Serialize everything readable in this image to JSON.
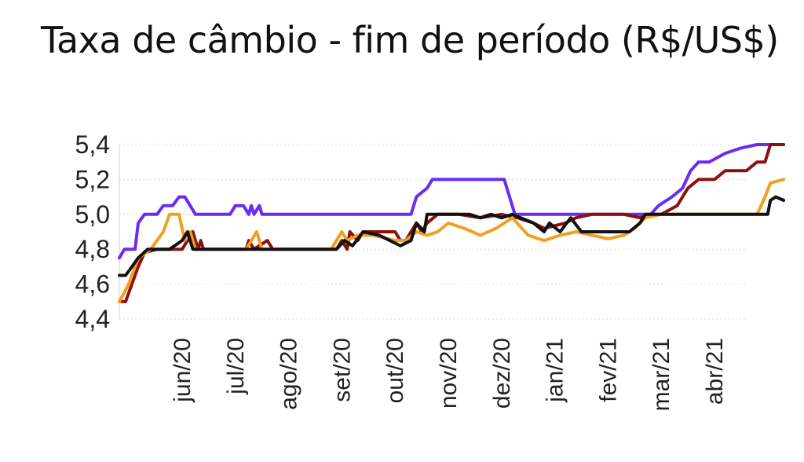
{
  "chart_data": {
    "type": "line",
    "title": "Taxa de câmbio - fim de período (R$/US$)",
    "xlabel": "",
    "ylabel": "",
    "ylim": [
      4.4,
      5.4
    ],
    "yticks": [
      "5,4",
      "5,2",
      "5,0",
      "4,8",
      "4,6",
      "4,4"
    ],
    "grid": true,
    "legend": "none",
    "xticks": [
      "jun/20",
      "jul/20",
      "ago/20",
      "set/20",
      "out/20",
      "nov/20",
      "dez/20",
      "jan/21",
      "fev/21",
      "mar/21",
      "abr/21"
    ],
    "series": [
      {
        "color": "#6a2cf0",
        "points": [
          [
            0,
            4.75
          ],
          [
            0.08,
            4.8
          ],
          [
            0.25,
            4.8
          ],
          [
            0.3,
            4.95
          ],
          [
            0.4,
            5.0
          ],
          [
            0.6,
            5.0
          ],
          [
            0.7,
            5.05
          ],
          [
            0.85,
            5.05
          ],
          [
            0.95,
            5.1
          ],
          [
            1.05,
            5.1
          ],
          [
            1.15,
            5.05
          ],
          [
            1.25,
            5.0
          ],
          [
            1.6,
            5.0
          ],
          [
            1.9,
            5.0
          ],
          [
            2.0,
            5.05
          ],
          [
            2.15,
            5.05
          ],
          [
            2.25,
            5.0
          ],
          [
            2.3,
            5.05
          ],
          [
            2.35,
            5.0
          ],
          [
            2.45,
            5.05
          ],
          [
            2.5,
            5.0
          ],
          [
            3.0,
            5.0
          ],
          [
            4.0,
            5.0
          ],
          [
            5.3,
            5.0
          ],
          [
            5.4,
            5.1
          ],
          [
            5.6,
            5.15
          ],
          [
            5.7,
            5.2
          ],
          [
            6.0,
            5.2
          ],
          [
            6.5,
            5.2
          ],
          [
            7.05,
            5.2
          ],
          [
            7.15,
            5.1
          ],
          [
            7.25,
            5.0
          ],
          [
            8.0,
            5.0
          ],
          [
            9.0,
            5.0
          ],
          [
            9.8,
            5.0
          ],
          [
            9.95,
            5.05
          ],
          [
            10.2,
            5.1
          ],
          [
            10.4,
            5.15
          ],
          [
            10.55,
            5.25
          ],
          [
            10.7,
            5.3
          ],
          [
            10.9,
            5.3
          ],
          [
            11.2,
            5.35
          ],
          [
            11.5,
            5.38
          ],
          [
            11.8,
            5.4
          ],
          [
            12.3,
            5.4
          ]
        ]
      },
      {
        "color": "#8b1010",
        "points": [
          [
            0,
            4.5
          ],
          [
            0.1,
            4.5
          ],
          [
            0.2,
            4.6
          ],
          [
            0.3,
            4.7
          ],
          [
            0.4,
            4.78
          ],
          [
            0.6,
            4.8
          ],
          [
            1.0,
            4.8
          ],
          [
            1.2,
            4.9
          ],
          [
            1.3,
            4.8
          ],
          [
            1.35,
            4.85
          ],
          [
            1.4,
            4.8
          ],
          [
            2.2,
            4.8
          ],
          [
            2.25,
            4.85
          ],
          [
            2.35,
            4.8
          ],
          [
            2.6,
            4.85
          ],
          [
            2.7,
            4.8
          ],
          [
            3.9,
            4.8
          ],
          [
            4.0,
            4.85
          ],
          [
            4.1,
            4.8
          ],
          [
            4.15,
            4.9
          ],
          [
            4.3,
            4.85
          ],
          [
            4.4,
            4.9
          ],
          [
            5.0,
            4.9
          ],
          [
            5.1,
            4.85
          ],
          [
            5.2,
            4.85
          ],
          [
            5.3,
            4.9
          ],
          [
            5.4,
            4.95
          ],
          [
            5.5,
            4.9
          ],
          [
            5.6,
            4.95
          ],
          [
            5.8,
            5.0
          ],
          [
            6.2,
            5.0
          ],
          [
            6.6,
            4.98
          ],
          [
            7.0,
            5.0
          ],
          [
            7.3,
            4.98
          ],
          [
            7.6,
            4.95
          ],
          [
            7.8,
            4.92
          ],
          [
            8.2,
            4.95
          ],
          [
            8.4,
            4.98
          ],
          [
            8.7,
            5.0
          ],
          [
            9.0,
            5.0
          ],
          [
            9.3,
            5.0
          ],
          [
            9.6,
            4.98
          ],
          [
            9.8,
            5.0
          ],
          [
            10.0,
            5.0
          ],
          [
            10.3,
            5.05
          ],
          [
            10.5,
            5.15
          ],
          [
            10.7,
            5.2
          ],
          [
            11.0,
            5.2
          ],
          [
            11.2,
            5.25
          ],
          [
            11.6,
            5.25
          ],
          [
            11.8,
            5.3
          ],
          [
            11.95,
            5.3
          ],
          [
            12.05,
            5.4
          ],
          [
            12.3,
            5.4
          ]
        ]
      },
      {
        "color": "#f0a020",
        "points": [
          [
            0,
            4.5
          ],
          [
            0.15,
            4.6
          ],
          [
            0.3,
            4.75
          ],
          [
            0.5,
            4.8
          ],
          [
            0.7,
            4.9
          ],
          [
            0.8,
            5.0
          ],
          [
            0.95,
            5.0
          ],
          [
            1.05,
            4.85
          ],
          [
            1.15,
            4.9
          ],
          [
            1.25,
            4.8
          ],
          [
            1.6,
            4.8
          ],
          [
            2.0,
            4.8
          ],
          [
            2.2,
            4.8
          ],
          [
            2.3,
            4.85
          ],
          [
            2.4,
            4.9
          ],
          [
            2.5,
            4.8
          ],
          [
            3.0,
            4.8
          ],
          [
            3.8,
            4.8
          ],
          [
            3.9,
            4.85
          ],
          [
            4.0,
            4.9
          ],
          [
            4.1,
            4.85
          ],
          [
            4.3,
            4.88
          ],
          [
            4.6,
            4.88
          ],
          [
            5.0,
            4.85
          ],
          [
            5.2,
            4.85
          ],
          [
            5.4,
            4.9
          ],
          [
            5.6,
            4.88
          ],
          [
            5.8,
            4.9
          ],
          [
            6.0,
            4.95
          ],
          [
            6.3,
            4.92
          ],
          [
            6.6,
            4.88
          ],
          [
            6.9,
            4.92
          ],
          [
            7.2,
            4.98
          ],
          [
            7.5,
            4.88
          ],
          [
            7.8,
            4.85
          ],
          [
            8.1,
            4.88
          ],
          [
            8.4,
            4.9
          ],
          [
            8.7,
            4.88
          ],
          [
            9.0,
            4.86
          ],
          [
            9.3,
            4.88
          ],
          [
            9.5,
            4.92
          ],
          [
            9.7,
            4.98
          ],
          [
            10.0,
            5.0
          ],
          [
            11.8,
            5.0
          ],
          [
            11.95,
            5.1
          ],
          [
            12.05,
            5.18
          ],
          [
            12.3,
            5.2
          ]
        ]
      },
      {
        "color": "#111111",
        "points": [
          [
            0,
            4.65
          ],
          [
            0.1,
            4.65
          ],
          [
            0.2,
            4.7
          ],
          [
            0.3,
            4.75
          ],
          [
            0.45,
            4.8
          ],
          [
            0.8,
            4.8
          ],
          [
            1.0,
            4.85
          ],
          [
            1.1,
            4.9
          ],
          [
            1.2,
            4.8
          ],
          [
            1.5,
            4.8
          ],
          [
            2.0,
            4.8
          ],
          [
            3.0,
            4.8
          ],
          [
            3.9,
            4.8
          ],
          [
            4.05,
            4.85
          ],
          [
            4.2,
            4.82
          ],
          [
            4.4,
            4.9
          ],
          [
            4.7,
            4.88
          ],
          [
            4.9,
            4.85
          ],
          [
            5.1,
            4.82
          ],
          [
            5.3,
            4.85
          ],
          [
            5.4,
            4.95
          ],
          [
            5.55,
            4.9
          ],
          [
            5.6,
            5.0
          ],
          [
            5.8,
            5.0
          ],
          [
            6.4,
            5.0
          ],
          [
            6.6,
            4.98
          ],
          [
            6.8,
            5.0
          ],
          [
            7.0,
            4.98
          ],
          [
            7.2,
            5.0
          ],
          [
            7.6,
            4.95
          ],
          [
            7.8,
            4.9
          ],
          [
            7.9,
            4.95
          ],
          [
            8.1,
            4.9
          ],
          [
            8.3,
            4.98
          ],
          [
            8.5,
            4.9
          ],
          [
            8.8,
            4.9
          ],
          [
            9.0,
            4.9
          ],
          [
            9.4,
            4.9
          ],
          [
            9.6,
            4.95
          ],
          [
            9.7,
            5.0
          ],
          [
            10.0,
            5.0
          ],
          [
            11.0,
            5.0
          ],
          [
            12.0,
            5.0
          ],
          [
            12.05,
            5.08
          ],
          [
            12.15,
            5.1
          ],
          [
            12.3,
            5.08
          ]
        ]
      }
    ]
  }
}
